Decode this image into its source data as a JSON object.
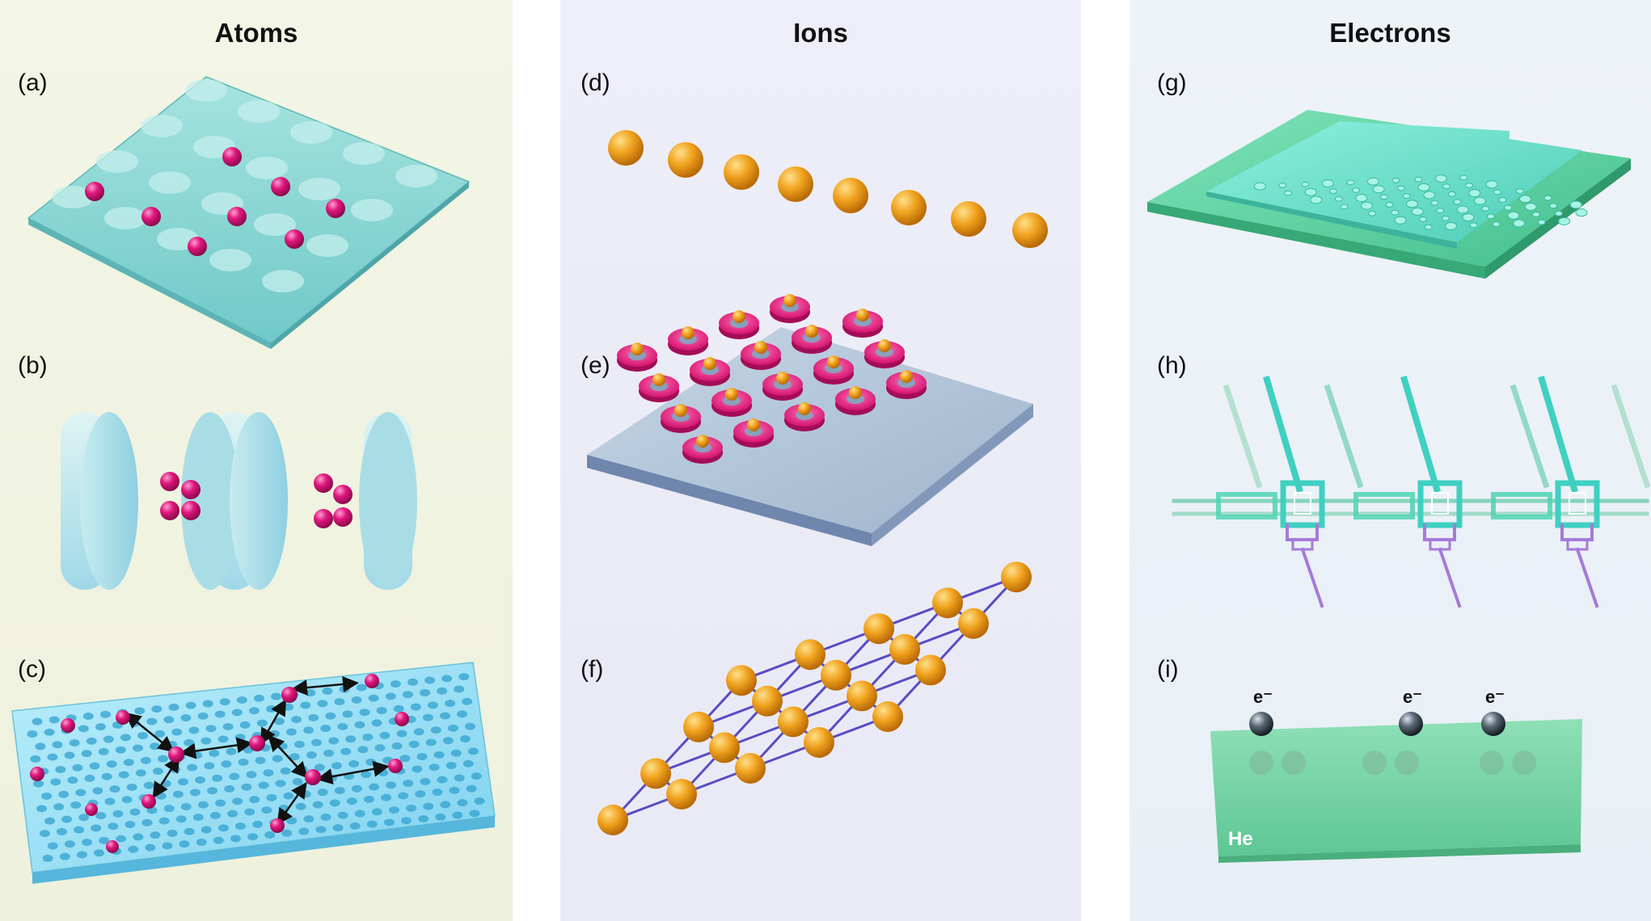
{
  "columns": [
    {
      "id": "atoms",
      "title": "Atoms",
      "panels": [
        "(a)",
        "(b)",
        "(c)"
      ]
    },
    {
      "id": "ions",
      "title": "Ions",
      "panels": [
        "(d)",
        "(e)",
        "(f)"
      ]
    },
    {
      "id": "electrons",
      "title": "Electrons",
      "panels": [
        "(g)",
        "(h)",
        "(i)"
      ]
    }
  ],
  "panel_i": {
    "electron_label": "e⁻",
    "substrate_label": "He"
  },
  "colors": {
    "atom": "#e0177e",
    "ion": "#f0a21e",
    "lattice_surface": "#8fd9d6",
    "cavity_mirror": "#b9e6ea",
    "electron_chip": "#5fd1a6",
    "ion_link": "#5b4bc2",
    "helium": "#7ed8a8"
  }
}
